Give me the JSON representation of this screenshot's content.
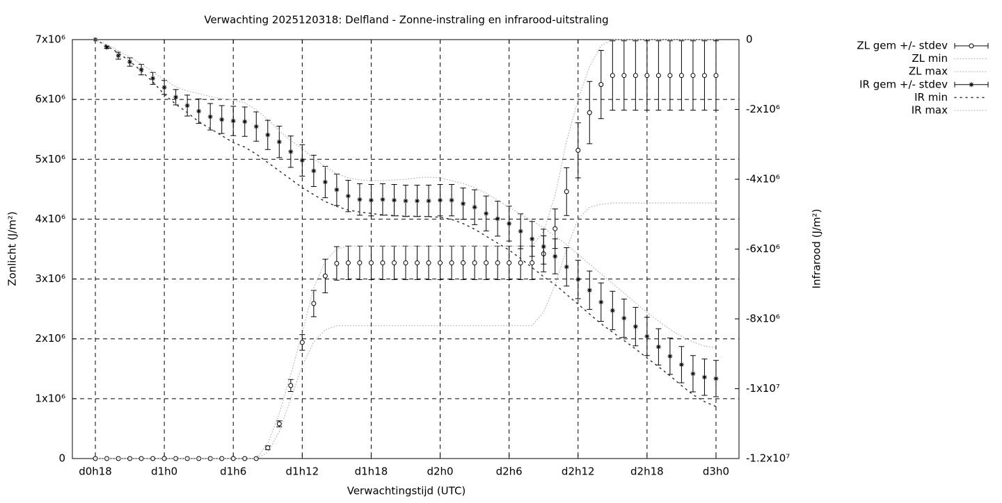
{
  "chart_data": {
    "type": "line",
    "title": "Verwachting 2025120318: Delfland - Zonne-instraling en infrarood-uitstraling",
    "x_label": "Verwachtingstijd (UTC)",
    "y_label": "Zonlicht (J/m²)",
    "y2_label": "Infrarood (J/m²)",
    "grid": true,
    "legend": "outside-top-right",
    "xlim": [
      16,
      74
    ],
    "xticks": [
      {
        "value": 18,
        "label": "d0h18"
      },
      {
        "value": 24,
        "label": "d1h0"
      },
      {
        "value": 30,
        "label": "d1h6"
      },
      {
        "value": 36,
        "label": "d1h12"
      },
      {
        "value": 42,
        "label": "d1h18"
      },
      {
        "value": 48,
        "label": "d2h0"
      },
      {
        "value": 54,
        "label": "d2h6"
      },
      {
        "value": 60,
        "label": "d2h12"
      },
      {
        "value": 66,
        "label": "d2h18"
      },
      {
        "value": 72,
        "label": "d3h0"
      }
    ],
    "ylim": [
      0,
      7000000
    ],
    "yticks": [
      0,
      {
        "value": 1000000,
        "label": "1x10⁶"
      },
      {
        "value": 2000000,
        "label": "2x10⁶"
      },
      {
        "value": 3000000,
        "label": "3x10⁶"
      },
      {
        "value": 4000000,
        "label": "4x10⁶"
      },
      {
        "value": 5000000,
        "label": "5x10⁶"
      },
      {
        "value": 6000000,
        "label": "6x10⁶"
      },
      {
        "value": 7000000,
        "label": "7x10⁶"
      }
    ],
    "y2lim": [
      -12000000,
      0
    ],
    "y2ticks": [
      0,
      {
        "value": -2000000,
        "label": "-2x10⁶"
      },
      {
        "value": -4000000,
        "label": "-4x10⁶"
      },
      {
        "value": -6000000,
        "label": "-6x10⁶"
      },
      {
        "value": -8000000,
        "label": "-8x10⁶"
      },
      {
        "value": -10000000,
        "label": "-1x10⁷"
      },
      {
        "value": -12000000,
        "label": "-1.2x10⁷"
      }
    ],
    "x": [
      18,
      19,
      20,
      21,
      22,
      23,
      24,
      25,
      26,
      27,
      28,
      29,
      30,
      31,
      32,
      33,
      34,
      35,
      36,
      37,
      38,
      39,
      40,
      41,
      42,
      43,
      44,
      45,
      46,
      47,
      48,
      49,
      50,
      51,
      52,
      53,
      54,
      55,
      56,
      57,
      58,
      59,
      60,
      61,
      62,
      63,
      64,
      65,
      66,
      67,
      68,
      69,
      70,
      71,
      72
    ],
    "series": [
      {
        "name": "ZL gem +/- stdev",
        "axis": "y",
        "marker": "circle",
        "color": "#000000",
        "values": [
          0,
          0,
          0,
          0,
          0,
          0,
          0,
          0,
          0,
          0,
          0,
          0,
          0,
          0,
          0,
          180000,
          580000,
          1220000,
          1940000,
          2590000,
          3050000,
          3260000,
          3270000,
          3270000,
          3270000,
          3270000,
          3270000,
          3270000,
          3270000,
          3270000,
          3270000,
          3270000,
          3270000,
          3270000,
          3270000,
          3270000,
          3270000,
          3270000,
          3270000,
          3420000,
          3840000,
          4460000,
          5150000,
          5780000,
          6250000,
          6400000,
          6400000,
          6400000,
          6400000,
          6400000,
          6400000,
          6400000,
          6400000,
          6400000,
          6400000
        ],
        "errors": [
          0,
          0,
          0,
          0,
          0,
          0,
          0,
          0,
          0,
          0,
          0,
          0,
          0,
          0,
          0,
          30000,
          50000,
          100000,
          130000,
          220000,
          280000,
          280000,
          280000,
          280000,
          280000,
          280000,
          280000,
          280000,
          280000,
          280000,
          280000,
          280000,
          280000,
          280000,
          280000,
          280000,
          280000,
          280000,
          280000,
          300000,
          330000,
          400000,
          460000,
          520000,
          570000,
          580000,
          580000,
          580000,
          580000,
          580000,
          580000,
          580000,
          580000,
          580000,
          580000
        ]
      },
      {
        "name": "ZL min",
        "axis": "y",
        "style": "dotted",
        "color": "#aaaaaa",
        "values": [
          0,
          0,
          0,
          0,
          0,
          0,
          0,
          0,
          0,
          0,
          0,
          0,
          0,
          0,
          0,
          100000,
          450000,
          1000000,
          1550000,
          1950000,
          2150000,
          2220000,
          2220000,
          2220000,
          2220000,
          2220000,
          2220000,
          2220000,
          2220000,
          2220000,
          2220000,
          2220000,
          2220000,
          2220000,
          2220000,
          2220000,
          2220000,
          2220000,
          2220000,
          2450000,
          2900000,
          3500000,
          4000000,
          4200000,
          4250000,
          4270000,
          4270000,
          4270000,
          4270000,
          4270000,
          4270000,
          4270000,
          4270000,
          4270000,
          4270000
        ]
      },
      {
        "name": "ZL max",
        "axis": "y",
        "style": "dotted",
        "color": "#aaaaaa",
        "values": [
          0,
          0,
          0,
          0,
          0,
          0,
          0,
          0,
          0,
          0,
          0,
          0,
          0,
          0,
          0,
          250000,
          750000,
          1400000,
          2100000,
          2850000,
          3300000,
          3500000,
          3550000,
          3550000,
          3550000,
          3550000,
          3550000,
          3550000,
          3550000,
          3550000,
          3550000,
          3550000,
          3550000,
          3550000,
          3550000,
          3550000,
          3550000,
          3550000,
          3550000,
          3800000,
          4400000,
          5300000,
          6000000,
          6550000,
          6900000,
          7000000,
          7000000,
          7000000,
          7000000,
          7000000,
          7000000,
          7000000,
          7000000,
          7000000,
          7000000
        ]
      },
      {
        "name": "IR gem +/- stdev",
        "axis": "y2",
        "marker": "star",
        "color": "#000000",
        "values": [
          0,
          -220000,
          -460000,
          -640000,
          -860000,
          -1110000,
          -1370000,
          -1650000,
          -1890000,
          -2050000,
          -2210000,
          -2290000,
          -2330000,
          -2350000,
          -2490000,
          -2730000,
          -2930000,
          -3210000,
          -3460000,
          -3760000,
          -4080000,
          -4300000,
          -4480000,
          -4580000,
          -4600000,
          -4580000,
          -4600000,
          -4620000,
          -4620000,
          -4620000,
          -4600000,
          -4600000,
          -4700000,
          -4800000,
          -4980000,
          -5130000,
          -5270000,
          -5490000,
          -5710000,
          -5930000,
          -6210000,
          -6510000,
          -6870000,
          -7180000,
          -7520000,
          -7760000,
          -7980000,
          -8220000,
          -8500000,
          -8800000,
          -9070000,
          -9310000,
          -9570000,
          -9670000,
          -9710000
        ],
        "errors": [
          0,
          30000,
          100000,
          120000,
          150000,
          170000,
          200000,
          220000,
          300000,
          350000,
          380000,
          400000,
          420000,
          420000,
          420000,
          420000,
          450000,
          450000,
          450000,
          450000,
          450000,
          450000,
          450000,
          450000,
          450000,
          450000,
          450000,
          450000,
          450000,
          450000,
          450000,
          450000,
          450000,
          500000,
          500000,
          500000,
          500000,
          500000,
          500000,
          500000,
          500000,
          550000,
          550000,
          550000,
          550000,
          550000,
          550000,
          550000,
          550000,
          520000,
          520000,
          520000,
          520000,
          520000,
          520000
        ]
      },
      {
        "name": "IR min",
        "axis": "y2",
        "style": "dotted",
        "color": "#333333",
        "values": [
          0,
          -180000,
          -380000,
          -620000,
          -900000,
          -1210000,
          -1570000,
          -1850000,
          -2090000,
          -2350000,
          -2550000,
          -2750000,
          -2950000,
          -3080000,
          -3280000,
          -3520000,
          -3760000,
          -4000000,
          -4240000,
          -4440000,
          -4640000,
          -4780000,
          -4880000,
          -4940000,
          -4980000,
          -5020000,
          -5040000,
          -5060000,
          -5060000,
          -5070000,
          -5090000,
          -5150000,
          -5270000,
          -5430000,
          -5630000,
          -5830000,
          -6030000,
          -6270000,
          -6530000,
          -6790000,
          -7020000,
          -7300000,
          -7580000,
          -7860000,
          -8140000,
          -8380000,
          -8620000,
          -8860000,
          -9120000,
          -9370000,
          -9630000,
          -9910000,
          -10170000,
          -10370000,
          -10510000
        ]
      },
      {
        "name": "IR max",
        "axis": "y2",
        "style": "dotted",
        "color": "#aaaaaa",
        "values": [
          0,
          -140000,
          -320000,
          -500000,
          -700000,
          -920000,
          -1150000,
          -1350000,
          -1470000,
          -1550000,
          -1630000,
          -1690000,
          -1730000,
          -1810000,
          -2010000,
          -2290000,
          -2610000,
          -2890000,
          -3120000,
          -3400000,
          -3640000,
          -3840000,
          -3960000,
          -4020000,
          -4040000,
          -4040000,
          -4020000,
          -4000000,
          -3960000,
          -3940000,
          -3960000,
          -4040000,
          -4120000,
          -4240000,
          -4400000,
          -4600000,
          -4800000,
          -5000000,
          -5190000,
          -5390000,
          -5630000,
          -5870000,
          -6150000,
          -6430000,
          -6710000,
          -6990000,
          -7260000,
          -7540000,
          -7820000,
          -8060000,
          -8300000,
          -8500000,
          -8660000,
          -8780000,
          -8820000
        ]
      }
    ]
  }
}
